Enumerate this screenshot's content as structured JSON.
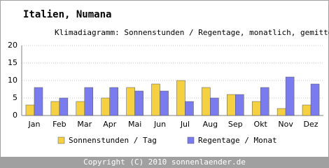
{
  "chart_data": {
    "type": "bar",
    "title": "Italien, Numana",
    "subtitle": "Klimadiagramm: Sonnenstunden / Regentage, monatlich, gemittelt",
    "categories": [
      "Jan",
      "Feb",
      "Mar",
      "Apr",
      "Mai",
      "Jun",
      "Jul",
      "Aug",
      "Sep",
      "Okt",
      "Nov",
      "Dez"
    ],
    "series": [
      {
        "name": "Sonnenstunden / Tag",
        "color": "#f5d040",
        "values": [
          3,
          4,
          4,
          5,
          8,
          9,
          10,
          8,
          6,
          4,
          2,
          3
        ]
      },
      {
        "name": "Regentage / Monat",
        "color": "#7b7bf0",
        "values": [
          8,
          5,
          8,
          8,
          7,
          7,
          4,
          5,
          6,
          8,
          11,
          9
        ]
      }
    ],
    "ylim": [
      0,
      20
    ],
    "yticks": [
      0,
      5,
      10,
      15,
      20
    ],
    "grid": true
  },
  "footer": "Copyright (C) 2010 sonnenlaender.de"
}
